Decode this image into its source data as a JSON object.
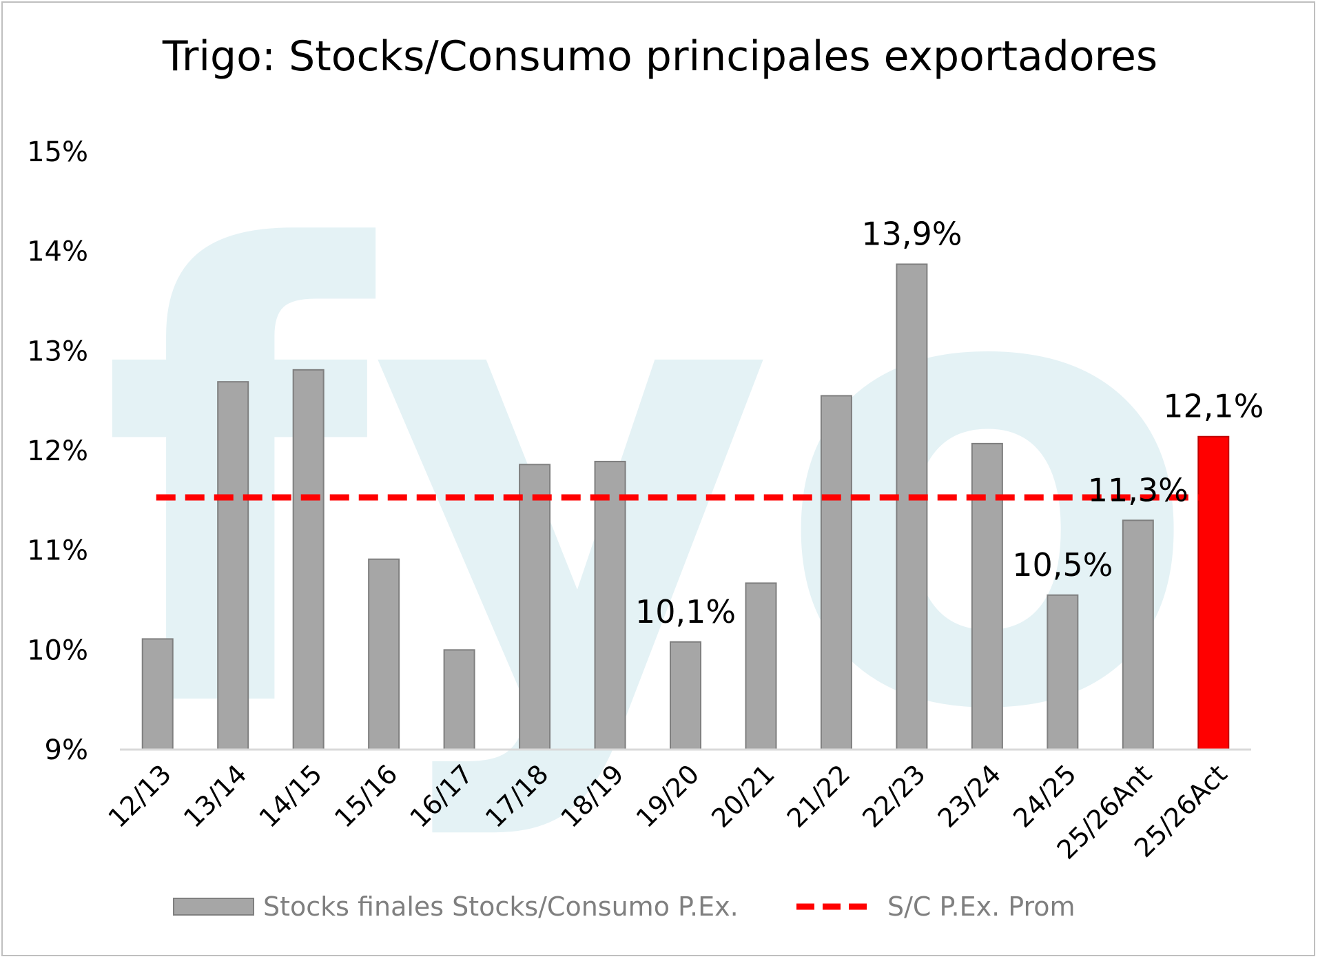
{
  "chart_data": {
    "type": "bar",
    "title": "Trigo: Stocks/Consumo principales exportadores",
    "categories": [
      "12/13",
      "13/14",
      "14/15",
      "15/16",
      "16/17",
      "17/18",
      "18/19",
      "19/20",
      "20/21",
      "21/22",
      "22/23",
      "23/24",
      "24/25",
      "25/26Ant",
      "25/26Act"
    ],
    "series": [
      {
        "name": "Stocks finales Stocks/Consumo P.Ex.",
        "values": [
          10.11,
          12.69,
          12.81,
          10.91,
          10.0,
          11.86,
          11.89,
          10.08,
          10.67,
          12.55,
          13.87,
          12.07,
          10.55,
          11.3,
          12.14
        ],
        "color": "#a6a6a6",
        "highlight_color": "#ff0000",
        "highlight_index": 14
      },
      {
        "name": "S/C P.Ex. Prom",
        "type": "line",
        "style": "dashed",
        "value": 11.53,
        "color": "#ff0000"
      }
    ],
    "data_labels": [
      {
        "index": 7,
        "text": "10,1%"
      },
      {
        "index": 10,
        "text": "13,9%"
      },
      {
        "index": 12,
        "text": "10,5%"
      },
      {
        "index": 13,
        "text": "11,3%"
      },
      {
        "index": 14,
        "text": "12,1%"
      }
    ],
    "y_ticks": [
      "9%",
      "10%",
      "11%",
      "12%",
      "13%",
      "14%",
      "15%"
    ],
    "ylim": [
      9,
      15
    ],
    "xlabel": "",
    "ylabel": "",
    "grid": false,
    "legend_position": "bottom",
    "watermark": "fyo"
  },
  "colors": {
    "bar": "#a6a6a6",
    "bar_border": "#7f7f7f",
    "highlight": "#ff0000",
    "average_line": "#ff0000",
    "axis": "#d9d9d9",
    "watermark": "#cfe8ee"
  }
}
